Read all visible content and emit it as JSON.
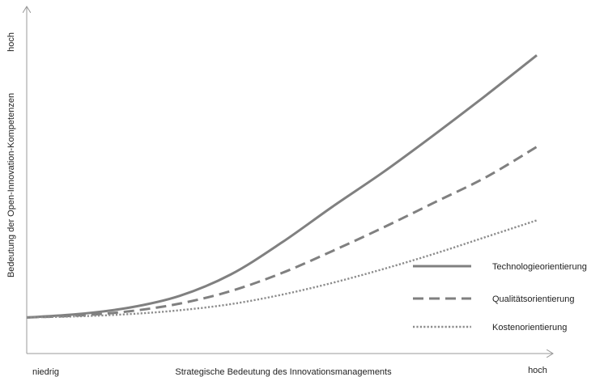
{
  "chart_data": {
    "type": "line",
    "title": "",
    "xlabel": "Strategische Bedeutung des Innovationsmanagements",
    "ylabel": "Bedeutung der Open-Innovation-Kompetenzen",
    "x_low_label": "niedrig",
    "x_high_label": "hoch",
    "y_high_label": "hoch",
    "xlim": [
      0,
      100
    ],
    "ylim": [
      0,
      100
    ],
    "grid": false,
    "legend_position": "lower-right",
    "x": [
      0,
      10,
      20,
      30,
      40,
      50,
      60,
      70,
      80,
      90,
      100
    ],
    "series": [
      {
        "name": "Technologieorientierung",
        "style": "solid",
        "color": "#808080",
        "values": [
          13.0,
          14.2,
          16.5,
          20.8,
          28.5,
          40.0,
          53.0,
          65.5,
          79.0,
          93.0,
          107.5
        ]
      },
      {
        "name": "Qualitätsorientierung",
        "style": "dashed",
        "color": "#808080",
        "values": [
          13.0,
          13.7,
          15.2,
          18.0,
          22.5,
          29.0,
          37.0,
          45.5,
          54.5,
          63.5,
          74.5
        ]
      },
      {
        "name": "Kostenorientierung",
        "style": "dotted",
        "color": "#8c8c8c",
        "values": [
          13.0,
          13.4,
          14.2,
          15.6,
          17.8,
          21.2,
          25.5,
          30.5,
          36.0,
          42.0,
          48.0
        ]
      }
    ]
  }
}
